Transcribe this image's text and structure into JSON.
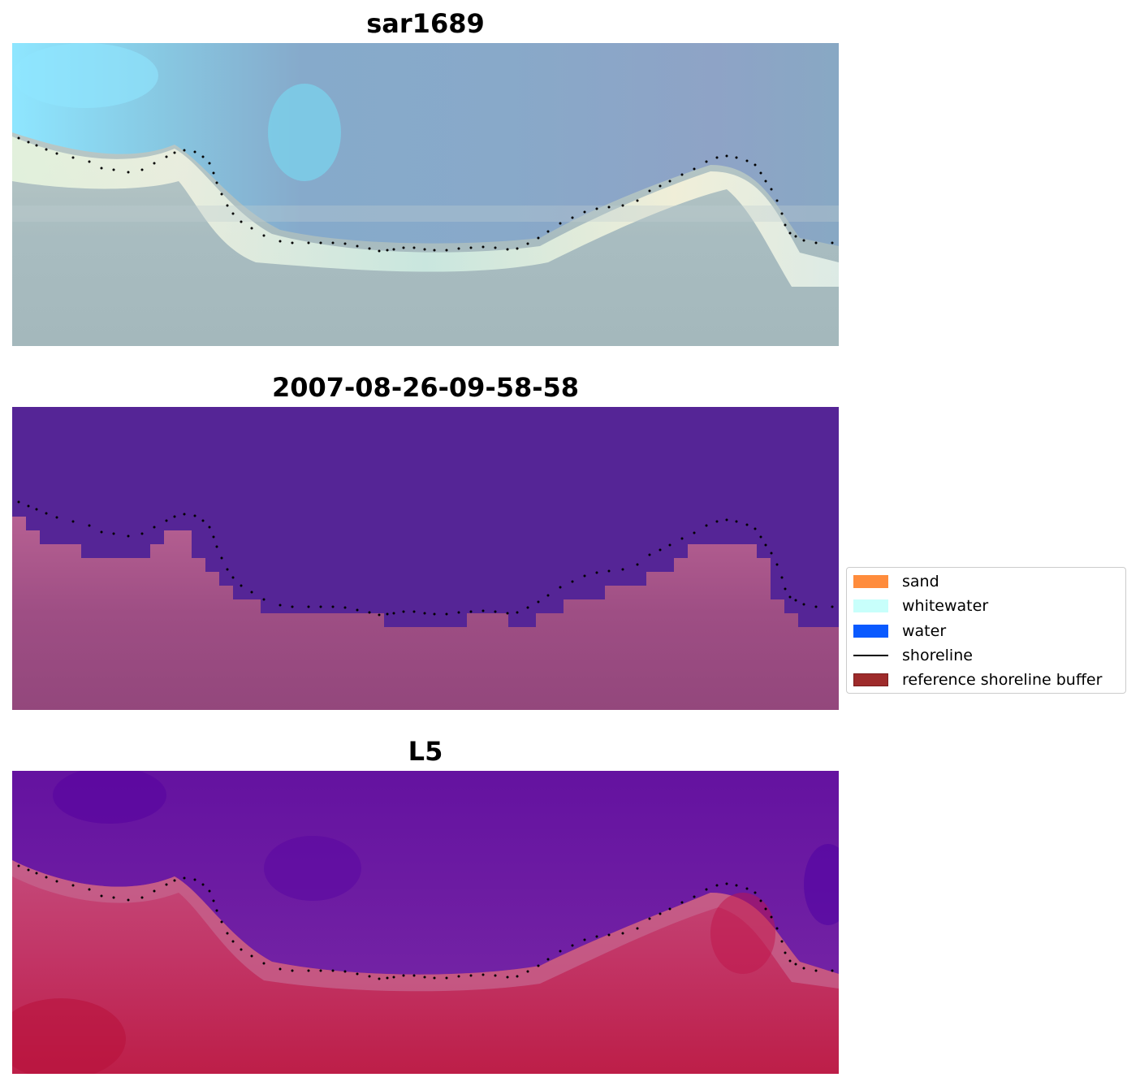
{
  "panels": [
    {
      "title": "sar1689"
    },
    {
      "title": "2007-08-26-09-58-58"
    },
    {
      "title": "L5"
    }
  ],
  "legend": {
    "items": [
      {
        "label": "sand",
        "color": "#ff8c3c",
        "kind": "patch"
      },
      {
        "label": "whitewater",
        "color": "#c8fffb",
        "kind": "patch"
      },
      {
        "label": "water",
        "color": "#0a5aff",
        "kind": "patch"
      },
      {
        "label": "shoreline",
        "color": "#000000",
        "kind": "line"
      },
      {
        "label": "reference shoreline buffer",
        "color": "#9e2b2b",
        "kind": "buffer"
      }
    ]
  },
  "colors": {
    "rgb_sky": "#8fb5c8",
    "classified_water": "#552596",
    "classified_land": "#9a4a80",
    "index_water": "#6a1aa2",
    "index_land": "#c02a58"
  }
}
